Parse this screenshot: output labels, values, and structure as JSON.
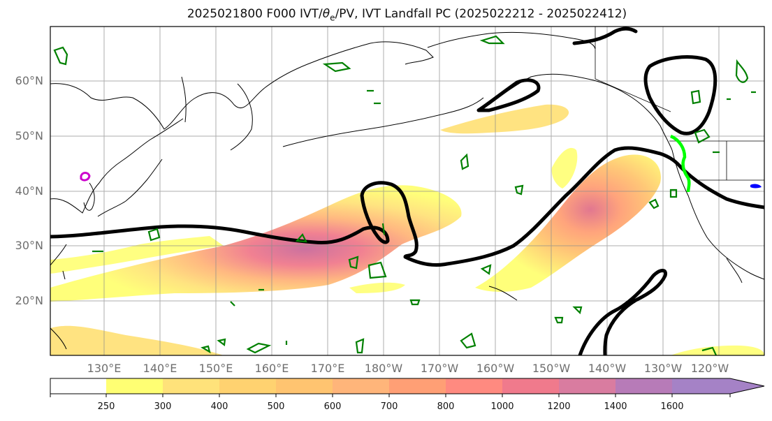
{
  "title": {
    "prefix": "2025021800 F000 IVT/",
    "theta": "θ",
    "theta_sub": "e",
    "suffix": "/PV, IVT Landfall PC (2025022212 - 2025022412)"
  },
  "lat_labels": [
    "60°N",
    "50°N",
    "40°N",
    "30°N",
    "20°N"
  ],
  "lon_labels": [
    "130°E",
    "140°E",
    "150°E",
    "160°E",
    "170°E",
    "180°W",
    "170°W",
    "160°W",
    "150°W",
    "140°W",
    "130°W",
    "120°W"
  ],
  "colorbar": {
    "labels": [
      "250",
      "300",
      "400",
      "500",
      "600",
      "700",
      "800",
      "1000",
      "1200",
      "1400",
      "1600"
    ],
    "colors": [
      "#ffffff",
      "#ffff73",
      "#ffe27a",
      "#ffd270",
      "#ffc470",
      "#ffb57a",
      "#ff9f75",
      "#ff8a80",
      "#f07a8c",
      "#d97ca0",
      "#b77bb8",
      "#a582c6"
    ]
  },
  "colors": {
    "ivt_contour": "#000000",
    "pv_contour": "#008000",
    "pv_highlight": "#00ff00",
    "theta_contour": "#cc00cc"
  }
}
